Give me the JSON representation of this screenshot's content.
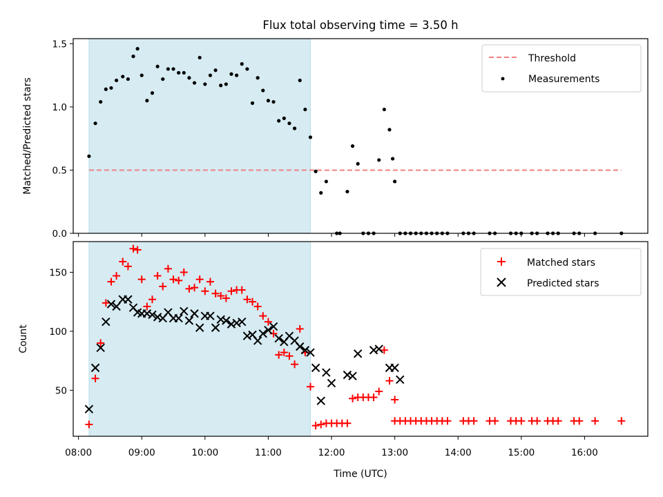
{
  "title": "Flux total observing time = 3.50 h",
  "chart_data": [
    {
      "type": "scatter",
      "title": "Flux total observing time = 3.50 h",
      "ylabel": "Matched/Predicted stars",
      "xlabel": "",
      "xlim": [
        "07:55",
        "17:00"
      ],
      "ylim": [
        0,
        1.54
      ],
      "yticks": [
        0.0,
        0.5,
        1.0,
        1.5
      ],
      "ytick_labels": [
        "0.0",
        "0.5",
        "1.0",
        "1.5"
      ],
      "shaded_region": {
        "x": [
          "08:10",
          "11:40"
        ],
        "color": "#add8e6"
      },
      "legend": {
        "position": "upper right",
        "entries": [
          "Threshold",
          "Measurements"
        ]
      },
      "threshold": {
        "name": "Threshold",
        "y": 0.5,
        "x": [
          "08:10",
          "16:35"
        ],
        "color": "#f08080",
        "style": "dashed"
      },
      "series": [
        {
          "name": "Measurements",
          "color": "#000000",
          "marker": "dot",
          "points": [
            [
              "08:10",
              0.61
            ],
            [
              "08:16",
              0.87
            ],
            [
              "08:21",
              1.04
            ],
            [
              "08:26",
              1.14
            ],
            [
              "08:31",
              1.15
            ],
            [
              "08:36",
              1.21
            ],
            [
              "08:42",
              1.24
            ],
            [
              "08:47",
              1.22
            ],
            [
              "08:52",
              1.4
            ],
            [
              "08:56",
              1.46
            ],
            [
              "09:00",
              1.25
            ],
            [
              "09:05",
              1.05
            ],
            [
              "09:10",
              1.11
            ],
            [
              "09:15",
              1.32
            ],
            [
              "09:20",
              1.22
            ],
            [
              "09:25",
              1.3
            ],
            [
              "09:30",
              1.3
            ],
            [
              "09:35",
              1.27
            ],
            [
              "09:40",
              1.27
            ],
            [
              "09:45",
              1.23
            ],
            [
              "09:50",
              1.19
            ],
            [
              "09:55",
              1.39
            ],
            [
              "10:00",
              1.18
            ],
            [
              "10:05",
              1.25
            ],
            [
              "10:10",
              1.29
            ],
            [
              "10:15",
              1.17
            ],
            [
              "10:20",
              1.18
            ],
            [
              "10:25",
              1.26
            ],
            [
              "10:30",
              1.25
            ],
            [
              "10:35",
              1.34
            ],
            [
              "10:40",
              1.3
            ],
            [
              "10:45",
              1.03
            ],
            [
              "10:50",
              1.23
            ],
            [
              "10:55",
              1.13
            ],
            [
              "11:00",
              1.05
            ],
            [
              "11:05",
              1.04
            ],
            [
              "11:10",
              0.89
            ],
            [
              "11:15",
              0.91
            ],
            [
              "11:20",
              0.87
            ],
            [
              "11:25",
              0.83
            ],
            [
              "11:30",
              1.21
            ],
            [
              "11:35",
              0.98
            ],
            [
              "11:40",
              0.76
            ],
            [
              "11:45",
              0.49
            ],
            [
              "11:50",
              0.32
            ],
            [
              "11:55",
              0.41
            ],
            [
              "12:05",
              0.0
            ],
            [
              "12:08",
              0.0
            ],
            [
              "12:15",
              0.33
            ],
            [
              "12:20",
              0.69
            ],
            [
              "12:25",
              0.55
            ],
            [
              "12:30",
              0.0
            ],
            [
              "12:35",
              0.0
            ],
            [
              "12:40",
              0.0
            ],
            [
              "12:45",
              0.58
            ],
            [
              "12:50",
              0.98
            ],
            [
              "12:55",
              0.82
            ],
            [
              "12:58",
              0.59
            ],
            [
              "13:00",
              0.41
            ],
            [
              "13:05",
              0.0
            ],
            [
              "13:10",
              0.0
            ],
            [
              "13:15",
              0.0
            ],
            [
              "13:20",
              0.0
            ],
            [
              "13:25",
              0.0
            ],
            [
              "13:30",
              0.0
            ],
            [
              "13:35",
              0.0
            ],
            [
              "13:40",
              0.0
            ],
            [
              "13:45",
              0.0
            ],
            [
              "13:50",
              0.0
            ],
            [
              "14:05",
              0.0
            ],
            [
              "14:10",
              0.0
            ],
            [
              "14:15",
              0.0
            ],
            [
              "14:30",
              0.0
            ],
            [
              "14:35",
              0.0
            ],
            [
              "14:50",
              0.0
            ],
            [
              "14:55",
              0.0
            ],
            [
              "15:00",
              0.0
            ],
            [
              "15:10",
              0.0
            ],
            [
              "15:15",
              0.0
            ],
            [
              "15:25",
              0.0
            ],
            [
              "15:30",
              0.0
            ],
            [
              "15:35",
              0.0
            ],
            [
              "15:50",
              0.0
            ],
            [
              "15:55",
              0.0
            ],
            [
              "16:10",
              0.0
            ],
            [
              "16:35",
              0.0
            ]
          ]
        }
      ]
    },
    {
      "type": "scatter",
      "title": "",
      "xlabel": "Time (UTC)",
      "ylabel": "Count",
      "xlim": [
        "07:55",
        "17:00"
      ],
      "ylim": [
        11,
        176
      ],
      "xticks": [
        "08:00",
        "09:00",
        "10:00",
        "11:00",
        "12:00",
        "13:00",
        "14:00",
        "15:00",
        "16:00"
      ],
      "xtick_labels": [
        "08:00",
        "09:00",
        "10:00",
        "11:00",
        "12:00",
        "13:00",
        "14:00",
        "15:00",
        "16:00"
      ],
      "yticks": [
        50,
        100,
        150
      ],
      "ytick_labels": [
        "50",
        "100",
        "150"
      ],
      "shaded_region": {
        "x": [
          "08:10",
          "11:40"
        ],
        "color": "#add8e6"
      },
      "legend": {
        "position": "upper right",
        "entries": [
          "Matched stars",
          "Predicted stars"
        ]
      },
      "series": [
        {
          "name": "Matched stars",
          "color": "#ff0000",
          "marker": "plus",
          "points": [
            [
              "08:10",
              21
            ],
            [
              "08:16",
              60
            ],
            [
              "08:21",
              90
            ],
            [
              "08:26",
              124
            ],
            [
              "08:31",
              142
            ],
            [
              "08:36",
              147
            ],
            [
              "08:42",
              159
            ],
            [
              "08:47",
              155
            ],
            [
              "08:52",
              170
            ],
            [
              "08:56",
              169
            ],
            [
              "09:00",
              144
            ],
            [
              "09:05",
              121
            ],
            [
              "09:10",
              127
            ],
            [
              "09:15",
              147
            ],
            [
              "09:20",
              138
            ],
            [
              "09:25",
              153
            ],
            [
              "09:30",
              144
            ],
            [
              "09:35",
              143
            ],
            [
              "09:40",
              150
            ],
            [
              "09:45",
              136
            ],
            [
              "09:50",
              137
            ],
            [
              "09:55",
              144
            ],
            [
              "10:00",
              134
            ],
            [
              "10:05",
              142
            ],
            [
              "10:10",
              132
            ],
            [
              "10:15",
              130
            ],
            [
              "10:20",
              128
            ],
            [
              "10:25",
              134
            ],
            [
              "10:30",
              135
            ],
            [
              "10:35",
              135
            ],
            [
              "10:40",
              127
            ],
            [
              "10:45",
              125
            ],
            [
              "10:50",
              121
            ],
            [
              "10:55",
              113
            ],
            [
              "11:00",
              108
            ],
            [
              "11:05",
              98
            ],
            [
              "11:10",
              80
            ],
            [
              "11:15",
              82
            ],
            [
              "11:20",
              79
            ],
            [
              "11:25",
              72
            ],
            [
              "11:30",
              102
            ],
            [
              "11:35",
              82
            ],
            [
              "11:40",
              53
            ],
            [
              "11:45",
              20
            ],
            [
              "11:50",
              21
            ],
            [
              "11:55",
              22
            ],
            [
              "12:00",
              22
            ],
            [
              "12:05",
              22
            ],
            [
              "12:10",
              22
            ],
            [
              "12:15",
              22
            ],
            [
              "12:20",
              43
            ],
            [
              "12:25",
              44
            ],
            [
              "12:30",
              44
            ],
            [
              "12:35",
              44
            ],
            [
              "12:40",
              44
            ],
            [
              "12:45",
              49
            ],
            [
              "12:50",
              84
            ],
            [
              "12:55",
              58
            ],
            [
              "13:00",
              42
            ],
            [
              "13:00",
              24
            ],
            [
              "13:05",
              24
            ],
            [
              "13:10",
              24
            ],
            [
              "13:15",
              24
            ],
            [
              "13:20",
              24
            ],
            [
              "13:25",
              24
            ],
            [
              "13:30",
              24
            ],
            [
              "13:35",
              24
            ],
            [
              "13:40",
              24
            ],
            [
              "13:45",
              24
            ],
            [
              "13:50",
              24
            ],
            [
              "14:05",
              24
            ],
            [
              "14:10",
              24
            ],
            [
              "14:15",
              24
            ],
            [
              "14:30",
              24
            ],
            [
              "14:35",
              24
            ],
            [
              "14:50",
              24
            ],
            [
              "14:55",
              24
            ],
            [
              "15:00",
              24
            ],
            [
              "15:10",
              24
            ],
            [
              "15:15",
              24
            ],
            [
              "15:25",
              24
            ],
            [
              "15:30",
              24
            ],
            [
              "15:35",
              24
            ],
            [
              "15:50",
              24
            ],
            [
              "15:55",
              24
            ],
            [
              "16:10",
              24
            ],
            [
              "16:35",
              24
            ]
          ]
        },
        {
          "name": "Predicted stars",
          "color": "#000000",
          "marker": "x",
          "points": [
            [
              "08:10",
              34
            ],
            [
              "08:16",
              69
            ],
            [
              "08:21",
              86
            ],
            [
              "08:26",
              108
            ],
            [
              "08:31",
              123
            ],
            [
              "08:36",
              121
            ],
            [
              "08:42",
              127
            ],
            [
              "08:47",
              127
            ],
            [
              "08:52",
              120
            ],
            [
              "08:56",
              116
            ],
            [
              "09:00",
              115
            ],
            [
              "09:05",
              115
            ],
            [
              "09:10",
              114
            ],
            [
              "09:15",
              112
            ],
            [
              "09:20",
              111
            ],
            [
              "09:25",
              116
            ],
            [
              "09:30",
              111
            ],
            [
              "09:35",
              111
            ],
            [
              "09:40",
              117
            ],
            [
              "09:45",
              109
            ],
            [
              "09:50",
              115
            ],
            [
              "09:55",
              103
            ],
            [
              "10:00",
              113
            ],
            [
              "10:05",
              113
            ],
            [
              "10:10",
              103
            ],
            [
              "10:15",
              110
            ],
            [
              "10:20",
              109
            ],
            [
              "10:25",
              106
            ],
            [
              "10:30",
              107
            ],
            [
              "10:35",
              108
            ],
            [
              "10:40",
              96
            ],
            [
              "10:45",
              97
            ],
            [
              "10:50",
              92
            ],
            [
              "10:55",
              98
            ],
            [
              "11:00",
              101
            ],
            [
              "11:05",
              104
            ],
            [
              "11:10",
              94
            ],
            [
              "11:15",
              91
            ],
            [
              "11:20",
              96
            ],
            [
              "11:25",
              92
            ],
            [
              "11:30",
              87
            ],
            [
              "11:35",
              84
            ],
            [
              "11:40",
              82
            ],
            [
              "11:45",
              69
            ],
            [
              "11:50",
              41
            ],
            [
              "11:55",
              65
            ],
            [
              "12:00",
              56
            ],
            [
              "12:15",
              63
            ],
            [
              "12:20",
              62
            ],
            [
              "12:25",
              81
            ],
            [
              "12:40",
              84
            ],
            [
              "12:45",
              85
            ],
            [
              "12:55",
              69
            ],
            [
              "13:00",
              69
            ],
            [
              "13:05",
              59
            ]
          ]
        }
      ]
    }
  ]
}
